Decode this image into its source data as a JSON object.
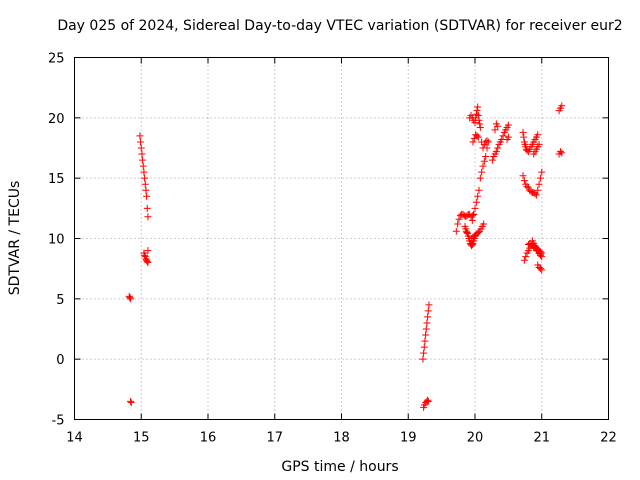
{
  "chart_data": {
    "type": "scatter",
    "title": "Day 025 of 2024, Sidereal Day-to-day VTEC variation (SDTVAR) for receiver eur2",
    "xlabel": "GPS time / hours",
    "ylabel": "SDTVAR / TECUs",
    "xlim": [
      14,
      22
    ],
    "ylim": [
      -5,
      25
    ],
    "xticks": [
      "14",
      "15",
      "16",
      "17",
      "18",
      "19",
      "20",
      "21",
      "22"
    ],
    "yticks": [
      "-5",
      "0",
      "5",
      "10",
      "15",
      "20",
      "25"
    ],
    "grid": true,
    "marker": "+",
    "color": "#ff0000",
    "series": [
      {
        "name": "SDTVAR",
        "x": [
          14.82,
          14.83,
          14.84,
          14.84,
          14.85,
          14.98,
          14.99,
          15.0,
          15.01,
          15.02,
          15.03,
          15.04,
          15.05,
          15.06,
          15.07,
          15.08,
          15.09,
          15.1,
          15.1,
          15.04,
          15.05,
          15.06,
          15.07,
          15.08,
          15.09,
          15.1,
          19.22,
          19.23,
          19.24,
          19.25,
          19.26,
          19.27,
          19.28,
          19.29,
          19.3,
          19.31,
          19.23,
          19.24,
          19.26,
          19.28,
          19.29,
          19.3,
          19.72,
          19.74,
          19.76,
          19.78,
          19.8,
          19.82,
          19.84,
          19.86,
          19.88,
          19.9,
          19.92,
          19.94,
          19.96,
          19.98,
          19.85,
          19.86,
          19.87,
          19.88,
          19.89,
          19.9,
          19.91,
          19.92,
          19.93,
          19.94,
          19.95,
          19.96,
          19.97,
          19.98,
          19.99,
          20.0,
          19.95,
          19.97,
          19.99,
          20.01,
          20.03,
          20.05,
          20.07,
          20.09,
          20.11,
          20.13,
          19.96,
          19.98,
          20.0,
          20.02,
          20.04,
          20.06,
          20.08,
          20.1,
          20.12,
          20.14,
          20.16,
          20.18,
          20.2,
          19.92,
          19.94,
          19.96,
          19.98,
          20.0,
          19.97,
          19.99,
          20.01,
          20.03,
          20.05,
          20.01,
          20.02,
          20.03,
          20.04,
          20.05,
          20.06,
          20.07,
          20.08,
          20.1,
          20.12,
          20.14,
          20.16,
          20.18,
          20.26,
          20.28,
          20.3,
          20.32,
          20.34,
          20.36,
          20.38,
          20.4,
          20.42,
          20.44,
          20.46,
          20.48,
          20.5,
          20.3,
          20.32,
          20.34,
          20.48,
          20.5,
          20.72,
          20.73,
          20.74,
          20.75,
          20.76,
          20.77,
          20.78,
          20.8,
          20.82,
          20.84,
          20.86,
          20.88,
          20.9,
          20.92,
          20.94,
          20.72,
          20.74,
          20.76,
          20.78,
          20.8,
          20.82,
          20.84,
          20.86,
          20.88,
          20.9,
          20.92,
          20.94,
          20.96,
          20.98,
          21.0,
          20.8,
          20.82,
          20.84,
          20.86,
          20.88,
          20.9,
          20.92,
          20.94,
          20.96,
          20.98,
          20.86,
          20.88,
          20.9,
          20.92,
          20.94,
          20.96,
          20.98,
          21.0,
          20.88,
          20.9,
          20.92,
          20.94,
          20.96,
          20.74,
          20.76,
          20.78,
          20.8,
          20.82,
          20.84,
          20.86,
          20.88,
          20.9,
          20.92,
          20.94,
          20.96,
          20.98,
          21.0,
          20.94,
          20.96,
          20.98,
          21.0,
          21.26,
          21.28,
          21.3,
          21.26,
          21.28,
          21.3
        ],
        "y": [
          5.2,
          5.1,
          5.0,
          -3.5,
          -3.6,
          18.5,
          18.0,
          17.5,
          17.0,
          16.5,
          16.0,
          15.5,
          15.0,
          14.5,
          14.0,
          13.5,
          12.5,
          11.8,
          9.0,
          8.8,
          8.6,
          8.5,
          8.3,
          8.2,
          8.1,
          8.0,
          0.0,
          0.5,
          1.0,
          1.5,
          2.0,
          2.5,
          3.0,
          3.5,
          4.0,
          4.5,
          -4.0,
          -3.8,
          -3.6,
          -3.5,
          -3.4,
          -3.5,
          10.6,
          11.2,
          11.6,
          11.9,
          12.0,
          12.0,
          11.9,
          11.8,
          11.9,
          12.0,
          12.0,
          11.8,
          11.9,
          12.0,
          11.0,
          10.8,
          10.6,
          10.5,
          10.4,
          10.2,
          10.0,
          9.8,
          9.6,
          9.5,
          9.4,
          9.5,
          9.6,
          9.8,
          10.0,
          10.2,
          10.0,
          10.1,
          10.2,
          10.3,
          10.4,
          10.5,
          10.6,
          10.8,
          11.0,
          11.2,
          11.5,
          12.0,
          12.5,
          13.0,
          13.5,
          14.0,
          15.0,
          15.5,
          16.0,
          16.4,
          16.8,
          17.5,
          18.0,
          20.0,
          20.2,
          20.0,
          19.8,
          19.6,
          18.0,
          18.3,
          18.6,
          18.5,
          18.4,
          20.0,
          20.3,
          20.6,
          20.9,
          20.2,
          19.8,
          19.5,
          19.2,
          18.0,
          17.5,
          17.8,
          18.0,
          18.1,
          16.5,
          16.8,
          17.0,
          17.2,
          17.5,
          17.8,
          18.0,
          18.2,
          18.5,
          18.8,
          19.0,
          19.2,
          19.4,
          19.0,
          19.5,
          19.3,
          18.2,
          18.4,
          18.8,
          18.4,
          18.0,
          17.8,
          17.6,
          17.4,
          17.3,
          17.2,
          17.4,
          17.6,
          17.8,
          18.0,
          18.2,
          18.4,
          18.6,
          15.2,
          14.8,
          14.5,
          14.3,
          14.2,
          14.0,
          13.9,
          13.8,
          13.8,
          13.7,
          13.6,
          14.0,
          14.5,
          15.0,
          15.5,
          9.5,
          9.6,
          9.5,
          9.4,
          9.3,
          9.2,
          9.0,
          9.0,
          8.8,
          8.7,
          9.8,
          9.6,
          9.4,
          9.2,
          9.0,
          8.8,
          8.6,
          8.5,
          17.0,
          17.2,
          17.4,
          17.6,
          17.8,
          8.2,
          8.5,
          8.8,
          9.0,
          9.2,
          9.4,
          9.5,
          9.4,
          9.3,
          9.2,
          9.1,
          9.0,
          8.9,
          8.8,
          7.8,
          7.6,
          7.5,
          7.4,
          20.6,
          20.8,
          21.0,
          17.0,
          17.2,
          17.1
        ]
      }
    ]
  }
}
